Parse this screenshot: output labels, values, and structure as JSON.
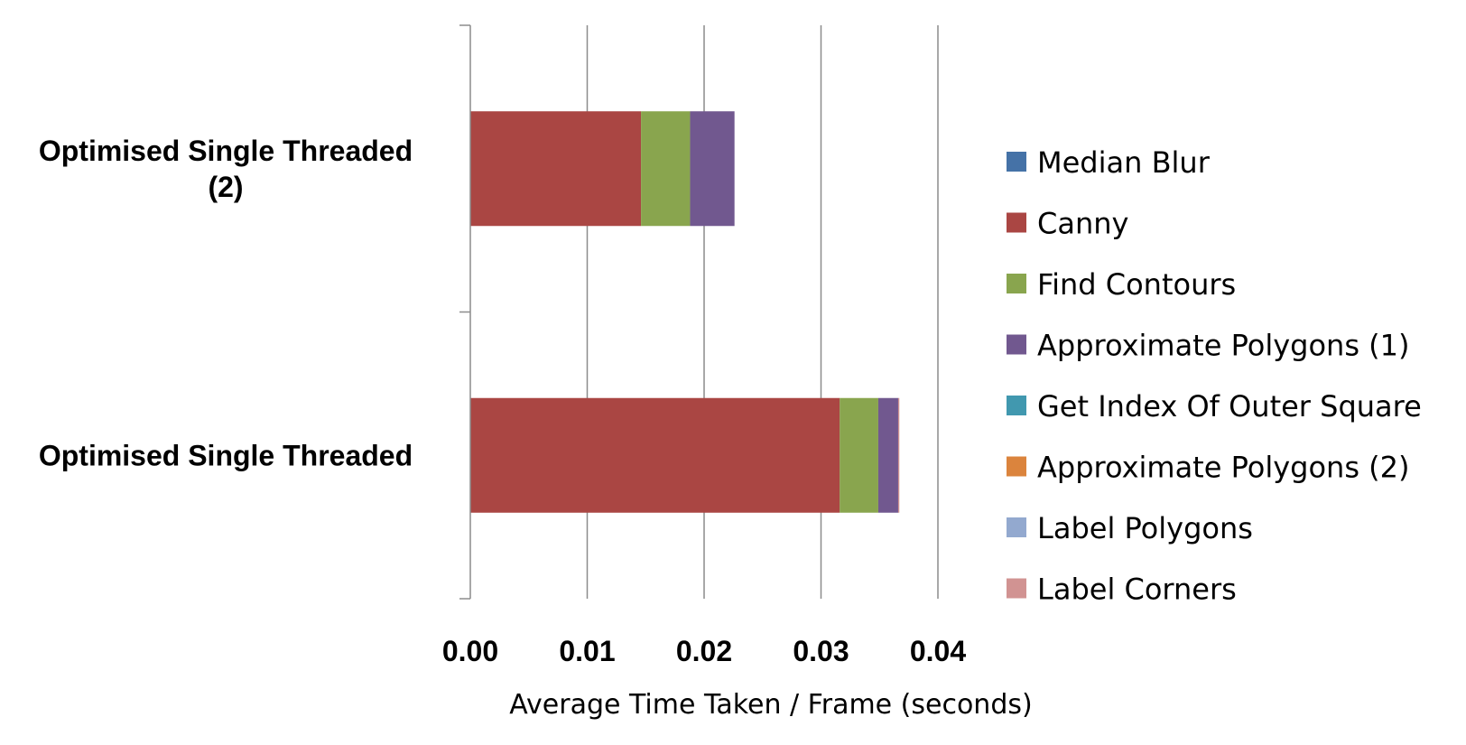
{
  "chart_data": {
    "type": "bar",
    "orientation": "horizontal",
    "stacked": true,
    "categories": [
      "Optimised Single Threaded (2)",
      "Optimised Single Threaded"
    ],
    "category_label_lines": [
      [
        "Optimised Single Threaded",
        "(2)"
      ],
      [
        "Optimised Single Threaded"
      ]
    ],
    "series": [
      {
        "name": "Median Blur",
        "color": "#4572A7",
        "values": [
          0.0,
          0.0
        ]
      },
      {
        "name": "Canny",
        "color": "#AA4643",
        "values": [
          0.0146,
          0.0316
        ]
      },
      {
        "name": "Find Contours",
        "color": "#89A54E",
        "values": [
          0.0042,
          0.0033
        ]
      },
      {
        "name": "Approximate Polygons (1)",
        "color": "#71588F",
        "values": [
          0.0038,
          0.0017
        ]
      },
      {
        "name": "Get Index Of Outer Square",
        "color": "#4198AF",
        "values": [
          0.0,
          0.0
        ]
      },
      {
        "name": "Approximate Polygons (2)",
        "color": "#DB843D",
        "values": [
          0.0,
          0.0
        ]
      },
      {
        "name": "Label Polygons",
        "color": "#93A9CF",
        "values": [
          0.0,
          0.0
        ]
      },
      {
        "name": "Label Corners",
        "color": "#D19392",
        "values": [
          0.0,
          0.0001
        ]
      }
    ],
    "xlim": [
      0,
      0.04
    ],
    "xticks": [
      "0.00",
      "0.01",
      "0.02",
      "0.03",
      "0.04"
    ],
    "xlabel": "Average Time Taken / Frame (seconds)",
    "ylabel": "",
    "title": "",
    "grid": "vertical",
    "legend": "right"
  }
}
